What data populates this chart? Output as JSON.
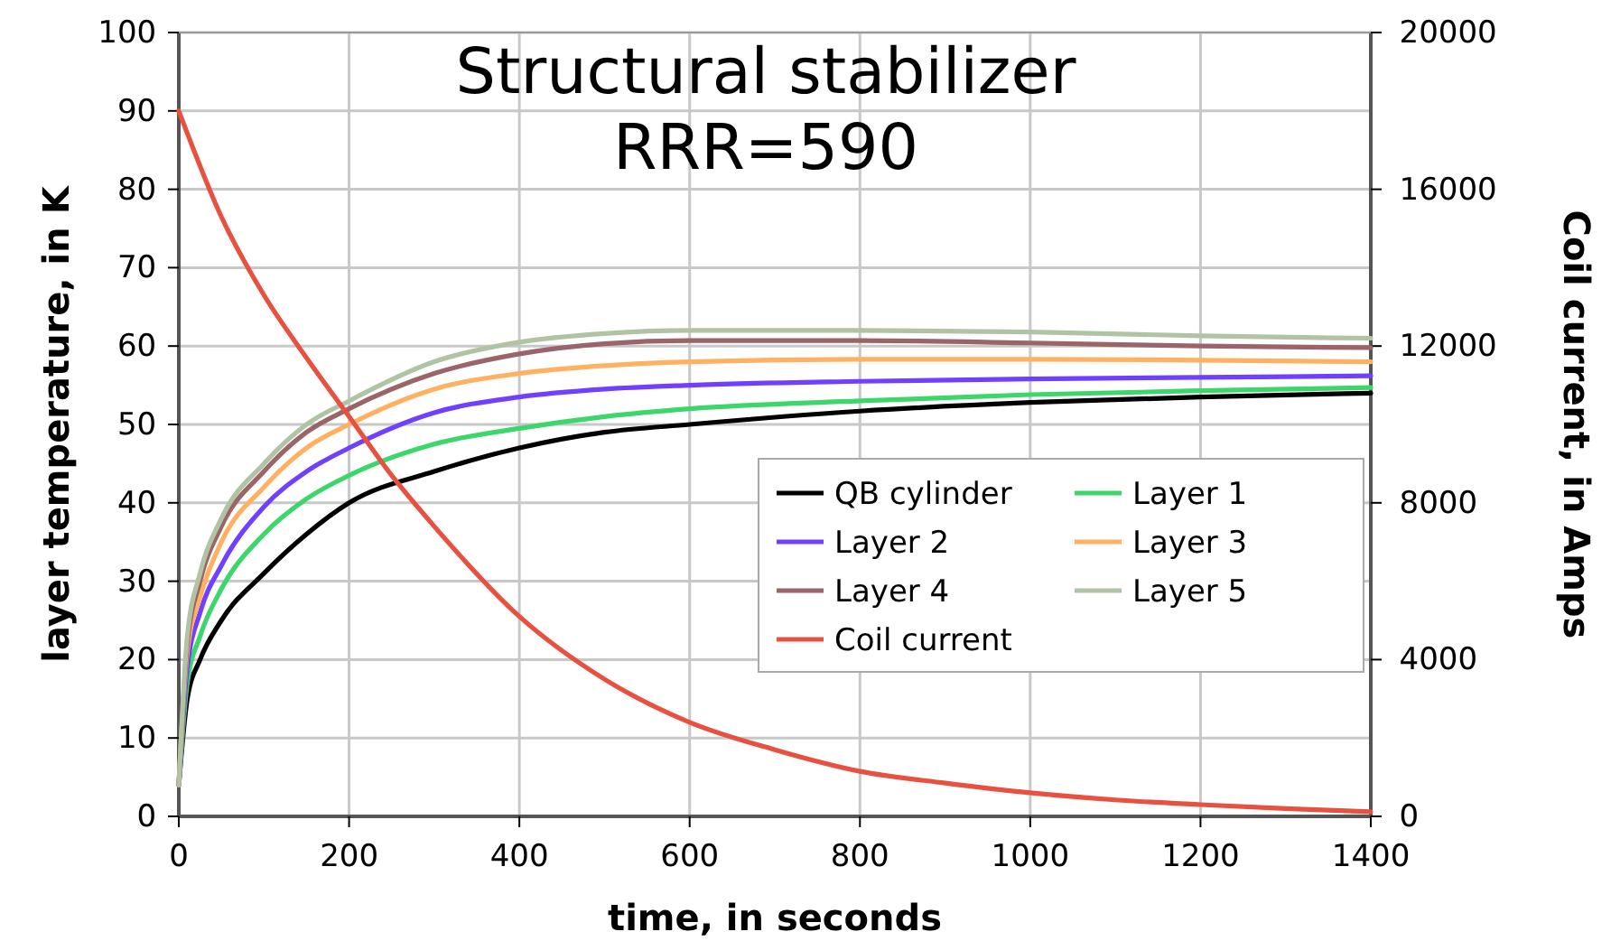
{
  "chart_data": {
    "type": "line",
    "title": "Structural stabilizer\nRRR=590",
    "xlabel": "time, in seconds",
    "ylabel": "layer temperature, in K",
    "y2label": "Coil current, in Amps",
    "x": [
      0,
      10,
      25,
      50,
      100,
      150,
      200,
      300,
      400,
      500,
      600,
      800,
      1000,
      1200,
      1400
    ],
    "xlim": [
      0,
      1400
    ],
    "xticks": [
      0,
      200,
      400,
      600,
      800,
      1000,
      1200,
      1400
    ],
    "ylim": [
      0,
      100
    ],
    "yticks": [
      0,
      10,
      20,
      30,
      40,
      50,
      60,
      70,
      80,
      90,
      100
    ],
    "y2lim": [
      0,
      20000
    ],
    "y2ticks": [
      0,
      4000,
      8000,
      12000,
      16000,
      20000
    ],
    "grid": true,
    "legend": "bottom right",
    "marker": "none",
    "line_style": "solid",
    "series": [
      {
        "name": "QB cylinder",
        "color": "#000000",
        "values": [
          4,
          15,
          20,
          25,
          31,
          36,
          40,
          44,
          47,
          49,
          50,
          51.7,
          52.8,
          53.5,
          54
        ]
      },
      {
        "name": "Layer 1",
        "color": "#3cd66a",
        "values": [
          4,
          17,
          23,
          29,
          36,
          40.5,
          43.5,
          47.5,
          49.5,
          51,
          52,
          53,
          53.8,
          54.3,
          54.7
        ]
      },
      {
        "name": "Layer 2",
        "color": "#7040ff",
        "values": [
          4,
          19,
          26,
          32,
          39.5,
          44,
          47,
          51.5,
          53.5,
          54.5,
          55,
          55.5,
          55.8,
          56,
          56.2
        ]
      },
      {
        "name": "Layer 3",
        "color": "#ffb060",
        "values": [
          4,
          21,
          28,
          35,
          42,
          47,
          50,
          54.5,
          56.5,
          57.5,
          58,
          58.3,
          58.3,
          58.2,
          58
        ]
      },
      {
        "name": "Layer 4",
        "color": "#9a6468",
        "values": [
          4,
          22,
          30,
          37,
          44,
          49,
          52,
          56.5,
          59,
          60.3,
          60.7,
          60.7,
          60.4,
          60,
          59.8
        ]
      },
      {
        "name": "Layer 5",
        "color": "#b0c4a4",
        "values": [
          4,
          23,
          31,
          38,
          45,
          50,
          53,
          58,
          60.5,
          61.6,
          62,
          62,
          61.8,
          61.3,
          61
        ]
      },
      {
        "name": "Coil current",
        "color": "#e8503f",
        "axis": "y2",
        "x": [
          0,
          50,
          100,
          150,
          200,
          250,
          300,
          400,
          500,
          600,
          700,
          800,
          900,
          1000,
          1100,
          1200,
          1300,
          1400
        ],
        "values": [
          18000,
          15300,
          13300,
          11700,
          10200,
          8700,
          7400,
          5100,
          3500,
          2400,
          1700,
          1150,
          850,
          600,
          420,
          300,
          200,
          120
        ]
      }
    ]
  }
}
